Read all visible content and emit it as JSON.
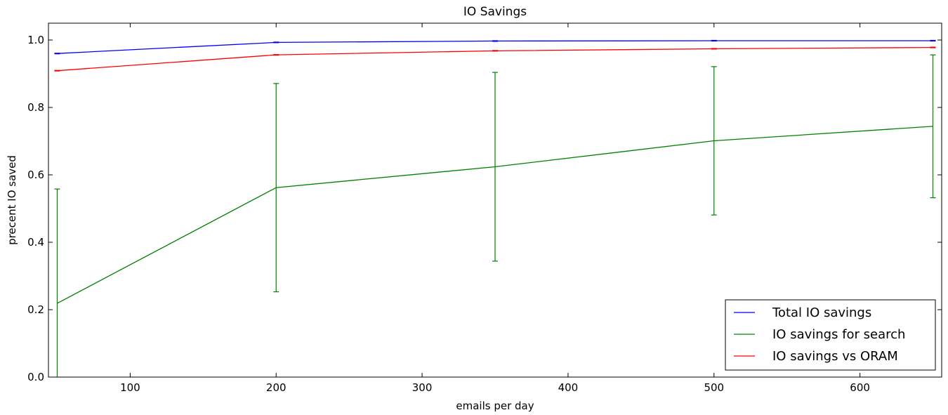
{
  "chart_data": {
    "type": "line",
    "title": "IO Savings",
    "xlabel": "emails per day",
    "ylabel": "precent IO saved",
    "xlim": [
      44,
      656
    ],
    "ylim": [
      0.0,
      1.05
    ],
    "xticks": [
      100,
      200,
      300,
      400,
      500,
      600
    ],
    "yticks": [
      0.0,
      0.2,
      0.4,
      0.6,
      0.8,
      1.0
    ],
    "xtick_labels": [
      "100",
      "200",
      "300",
      "400",
      "500",
      "600"
    ],
    "ytick_labels": [
      "0.0",
      "0.2",
      "0.4",
      "0.6",
      "0.8",
      "1.0"
    ],
    "x": [
      50,
      200,
      350,
      500,
      650
    ],
    "grid": false,
    "legend_position": "lower-right",
    "series": [
      {
        "name": "Total IO savings",
        "color": "#0000ff",
        "values": [
          0.96,
          0.993,
          0.997,
          0.998,
          0.998
        ],
        "errors": [
          0.001,
          0.001,
          0.001,
          0.001,
          0.001
        ]
      },
      {
        "name": "IO savings for search",
        "color": "#008000",
        "values": [
          0.219,
          0.562,
          0.624,
          0.701,
          0.744
        ],
        "errors": [
          0.339,
          0.309,
          0.28,
          0.22,
          0.212
        ]
      },
      {
        "name": "IO savings vs ORAM",
        "color": "#ff0000",
        "values": [
          0.909,
          0.956,
          0.968,
          0.974,
          0.978
        ],
        "errors": [
          0.001,
          0.001,
          0.001,
          0.001,
          0.001
        ]
      }
    ]
  }
}
